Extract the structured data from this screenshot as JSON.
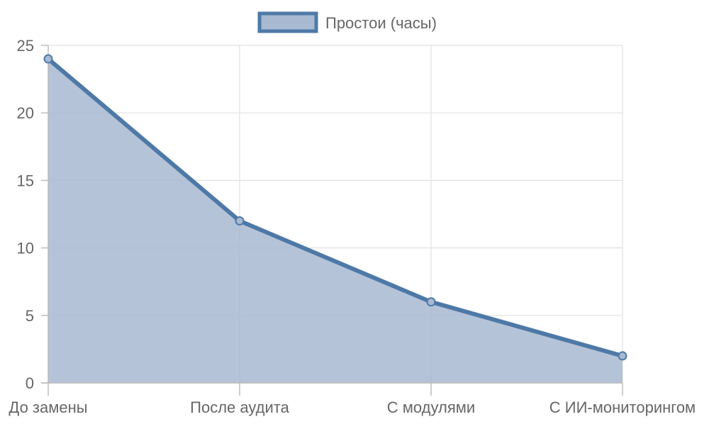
{
  "chart_data": {
    "type": "area",
    "categories": [
      "До замены",
      "После аудита",
      "С модулями",
      "С ИИ-мониторингом"
    ],
    "series": [
      {
        "name": "Простои (часы)",
        "values": [
          24,
          12,
          6,
          2
        ],
        "color": "#4e79a7",
        "fill_color": "#a8b9d2"
      }
    ],
    "ylim": [
      0,
      25
    ],
    "yticks": [
      0,
      5,
      10,
      15,
      20,
      25
    ],
    "grid": true,
    "legend": "top-center"
  }
}
